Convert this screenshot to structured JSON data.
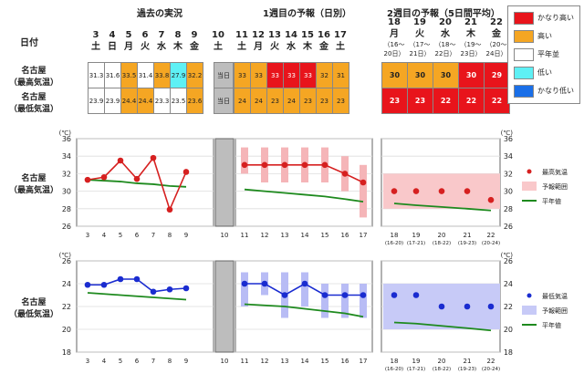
{
  "headers": {
    "past": "過去の実況",
    "week1": "1週目の予報（日別）",
    "week2": "2週目の予報（5日間平均）",
    "date": "日付"
  },
  "days": [
    {
      "d": "3",
      "w": "土"
    },
    {
      "d": "4",
      "w": "日"
    },
    {
      "d": "5",
      "w": "月"
    },
    {
      "d": "6",
      "w": "火"
    },
    {
      "d": "7",
      "w": "水"
    },
    {
      "d": "8",
      "w": "木"
    },
    {
      "d": "9",
      "w": "金"
    },
    {
      "d": "10",
      "w": "土"
    },
    {
      "d": "11",
      "w": "土"
    },
    {
      "d": "12",
      "w": "月"
    },
    {
      "d": "13",
      "w": "火"
    },
    {
      "d": "14",
      "w": "水"
    },
    {
      "d": "15",
      "w": "木"
    },
    {
      "d": "16",
      "w": "金"
    },
    {
      "d": "17",
      "w": "土"
    }
  ],
  "w2days": [
    {
      "d": "18",
      "w": "月",
      "r1": "（16～",
      "r2": "20日）"
    },
    {
      "d": "19",
      "w": "火",
      "r1": "（17～",
      "r2": "21日）"
    },
    {
      "d": "20",
      "w": "水",
      "r1": "（18～",
      "r2": "22日）"
    },
    {
      "d": "21",
      "w": "木",
      "r1": "（19～",
      "r2": "23日）"
    },
    {
      "d": "22",
      "w": "金",
      "r1": "（20～",
      "r2": "24日）"
    }
  ],
  "rows": {
    "max": {
      "l1": "名古屋",
      "l2": "（最高気温）"
    },
    "min": {
      "l1": "名古屋",
      "l2": "（最低気温）"
    }
  },
  "table": {
    "today": "当日",
    "max_past": [
      "31.3",
      "31.6",
      "33.5",
      "31.4",
      "33.8",
      "27.9",
      "32.2"
    ],
    "max_past_cls": [
      "n",
      "n",
      "o",
      "n",
      "o",
      "c",
      "o"
    ],
    "max_w1": [
      "33",
      "33",
      "33",
      "33",
      "33",
      "32",
      "31"
    ],
    "max_w1_cls": [
      "o",
      "o",
      "r",
      "r",
      "r",
      "o",
      "o"
    ],
    "max_w2": [
      "30",
      "30",
      "30",
      "30",
      "29"
    ],
    "max_w2_cls": [
      "o",
      "o",
      "o",
      "r",
      "r"
    ],
    "min_past": [
      "23.9",
      "23.9",
      "24.4",
      "24.4",
      "23.3",
      "23.5",
      "23.6"
    ],
    "min_past_cls": [
      "n",
      "n",
      "o",
      "o",
      "n",
      "n",
      "o"
    ],
    "min_w1": [
      "24",
      "24",
      "23",
      "24",
      "23",
      "23",
      "23"
    ],
    "min_w1_cls": [
      "o",
      "o",
      "o",
      "o",
      "o",
      "o",
      "o"
    ],
    "min_w2": [
      "23",
      "23",
      "22",
      "22",
      "22"
    ],
    "min_w2_cls": [
      "r",
      "r",
      "r",
      "r",
      "r"
    ]
  },
  "legend": {
    "items": [
      {
        "label": "かなり高い",
        "color": "#e8141b"
      },
      {
        "label": "高い",
        "color": "#f5a623"
      },
      {
        "label": "平年並",
        "color": "#ffffff"
      },
      {
        "label": "低い",
        "color": "#5ef0f5"
      },
      {
        "label": "かなり低い",
        "color": "#1a6fe8"
      }
    ]
  },
  "colors": {
    "r": "#e8141b",
    "o": "#f5a623",
    "n": "#ffffff",
    "c": "#5ef0f5",
    "gray": "#bdbdbd"
  },
  "chart_data": [
    {
      "type": "line",
      "title": "名古屋（最高気温）",
      "ylabel": "(℃)",
      "ylim": [
        26,
        36
      ],
      "yticks": [
        "26",
        "28",
        "30",
        "32",
        "34",
        "36"
      ],
      "x": [
        "3",
        "4",
        "5",
        "6",
        "7",
        "8",
        "9",
        "10",
        "11",
        "12",
        "13",
        "14",
        "15",
        "16",
        "17"
      ],
      "series": [
        {
          "name": "最高気温",
          "past": [
            31.3,
            31.6,
            33.5,
            31.4,
            33.8,
            27.9,
            32.2
          ],
          "forecast": [
            33,
            33,
            33,
            33,
            33,
            32,
            31
          ],
          "color": "#d62020"
        }
      ],
      "range_w1": [
        [
          32,
          35
        ],
        [
          31,
          35
        ],
        [
          31,
          35
        ],
        [
          31,
          35
        ],
        [
          31,
          35
        ],
        [
          30,
          34
        ],
        [
          27,
          33
        ]
      ],
      "normal_past": [
        31.3,
        31.2,
        31.1,
        30.9,
        30.8,
        30.6,
        30.5
      ],
      "normal_w1": [
        30.2,
        30.0,
        29.8,
        29.6,
        29.4,
        29.1,
        28.8
      ],
      "w2": {
        "x": [
          "18",
          "19",
          "20",
          "21",
          "22"
        ],
        "x2": [
          "(16-20)",
          "(17-21)",
          "(18-22)",
          "(19-23)",
          "(20-24)"
        ],
        "values": [
          30,
          30,
          30,
          30,
          29
        ],
        "range": [
          28,
          32
        ],
        "normal": [
          28.6,
          28.4,
          28.2,
          28.0,
          27.8
        ]
      },
      "legend": [
        "最高気温",
        "予報範囲",
        "平年値"
      ]
    },
    {
      "type": "line",
      "title": "名古屋（最低気温）",
      "ylabel": "(℃)",
      "ylim": [
        18,
        26
      ],
      "yticks": [
        "18",
        "20",
        "22",
        "24",
        "26"
      ],
      "x": [
        "3",
        "4",
        "5",
        "6",
        "7",
        "8",
        "9",
        "10",
        "11",
        "12",
        "13",
        "14",
        "15",
        "16",
        "17"
      ],
      "series": [
        {
          "name": "最低気温",
          "past": [
            23.9,
            23.9,
            24.4,
            24.4,
            23.3,
            23.5,
            23.6
          ],
          "forecast": [
            24,
            24,
            23,
            24,
            23,
            23,
            23
          ],
          "color": "#1a2cd0"
        }
      ],
      "range_w1": [
        [
          22,
          25
        ],
        [
          23,
          25
        ],
        [
          21,
          25
        ],
        [
          22,
          25
        ],
        [
          21,
          24
        ],
        [
          21,
          24
        ],
        [
          21,
          24
        ]
      ],
      "normal_past": [
        23.2,
        23.1,
        23.0,
        22.9,
        22.8,
        22.7,
        22.6
      ],
      "normal_w1": [
        22.2,
        22.1,
        22.0,
        21.8,
        21.6,
        21.4,
        21.1
      ],
      "w2": {
        "x": [
          "18",
          "19",
          "20",
          "21",
          "22"
        ],
        "x2": [
          "(16-20)",
          "(17-21)",
          "(18-22)",
          "(19-23)",
          "(20-24)"
        ],
        "values": [
          23,
          23,
          22,
          22,
          22
        ],
        "range": [
          20,
          24
        ],
        "normal": [
          20.6,
          20.5,
          20.3,
          20.1,
          19.9
        ]
      },
      "legend": [
        "最低気温",
        "予報範囲",
        "平年値"
      ]
    }
  ]
}
